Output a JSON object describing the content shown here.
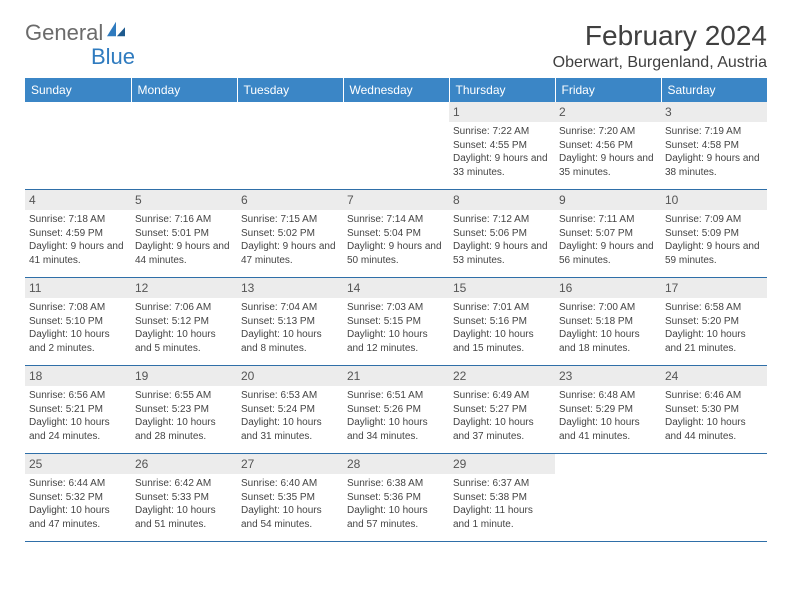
{
  "logo": {
    "g": "General",
    "b": "Blue"
  },
  "title": "February 2024",
  "location": "Oberwart, Burgenland, Austria",
  "colors": {
    "header_bg": "#3b86c6",
    "header_text": "#ffffff",
    "rule": "#2f6fa8",
    "daynum_bg": "#ececec",
    "body_text": "#444444",
    "title_text": "#404040",
    "logo_gray": "#6b6b6b",
    "logo_blue": "#2f7bbf"
  },
  "typography": {
    "title_fontsize": 28,
    "location_fontsize": 16,
    "dayheader_fontsize": 12,
    "daynum_fontsize": 12,
    "cell_fontsize": 10
  },
  "day_headers": [
    "Sunday",
    "Monday",
    "Tuesday",
    "Wednesday",
    "Thursday",
    "Friday",
    "Saturday"
  ],
  "weeks": [
    [
      {
        "n": "",
        "sr": "",
        "ss": "",
        "dl": ""
      },
      {
        "n": "",
        "sr": "",
        "ss": "",
        "dl": ""
      },
      {
        "n": "",
        "sr": "",
        "ss": "",
        "dl": ""
      },
      {
        "n": "",
        "sr": "",
        "ss": "",
        "dl": ""
      },
      {
        "n": "1",
        "sr": "Sunrise: 7:22 AM",
        "ss": "Sunset: 4:55 PM",
        "dl": "Daylight: 9 hours and 33 minutes."
      },
      {
        "n": "2",
        "sr": "Sunrise: 7:20 AM",
        "ss": "Sunset: 4:56 PM",
        "dl": "Daylight: 9 hours and 35 minutes."
      },
      {
        "n": "3",
        "sr": "Sunrise: 7:19 AM",
        "ss": "Sunset: 4:58 PM",
        "dl": "Daylight: 9 hours and 38 minutes."
      }
    ],
    [
      {
        "n": "4",
        "sr": "Sunrise: 7:18 AM",
        "ss": "Sunset: 4:59 PM",
        "dl": "Daylight: 9 hours and 41 minutes."
      },
      {
        "n": "5",
        "sr": "Sunrise: 7:16 AM",
        "ss": "Sunset: 5:01 PM",
        "dl": "Daylight: 9 hours and 44 minutes."
      },
      {
        "n": "6",
        "sr": "Sunrise: 7:15 AM",
        "ss": "Sunset: 5:02 PM",
        "dl": "Daylight: 9 hours and 47 minutes."
      },
      {
        "n": "7",
        "sr": "Sunrise: 7:14 AM",
        "ss": "Sunset: 5:04 PM",
        "dl": "Daylight: 9 hours and 50 minutes."
      },
      {
        "n": "8",
        "sr": "Sunrise: 7:12 AM",
        "ss": "Sunset: 5:06 PM",
        "dl": "Daylight: 9 hours and 53 minutes."
      },
      {
        "n": "9",
        "sr": "Sunrise: 7:11 AM",
        "ss": "Sunset: 5:07 PM",
        "dl": "Daylight: 9 hours and 56 minutes."
      },
      {
        "n": "10",
        "sr": "Sunrise: 7:09 AM",
        "ss": "Sunset: 5:09 PM",
        "dl": "Daylight: 9 hours and 59 minutes."
      }
    ],
    [
      {
        "n": "11",
        "sr": "Sunrise: 7:08 AM",
        "ss": "Sunset: 5:10 PM",
        "dl": "Daylight: 10 hours and 2 minutes."
      },
      {
        "n": "12",
        "sr": "Sunrise: 7:06 AM",
        "ss": "Sunset: 5:12 PM",
        "dl": "Daylight: 10 hours and 5 minutes."
      },
      {
        "n": "13",
        "sr": "Sunrise: 7:04 AM",
        "ss": "Sunset: 5:13 PM",
        "dl": "Daylight: 10 hours and 8 minutes."
      },
      {
        "n": "14",
        "sr": "Sunrise: 7:03 AM",
        "ss": "Sunset: 5:15 PM",
        "dl": "Daylight: 10 hours and 12 minutes."
      },
      {
        "n": "15",
        "sr": "Sunrise: 7:01 AM",
        "ss": "Sunset: 5:16 PM",
        "dl": "Daylight: 10 hours and 15 minutes."
      },
      {
        "n": "16",
        "sr": "Sunrise: 7:00 AM",
        "ss": "Sunset: 5:18 PM",
        "dl": "Daylight: 10 hours and 18 minutes."
      },
      {
        "n": "17",
        "sr": "Sunrise: 6:58 AM",
        "ss": "Sunset: 5:20 PM",
        "dl": "Daylight: 10 hours and 21 minutes."
      }
    ],
    [
      {
        "n": "18",
        "sr": "Sunrise: 6:56 AM",
        "ss": "Sunset: 5:21 PM",
        "dl": "Daylight: 10 hours and 24 minutes."
      },
      {
        "n": "19",
        "sr": "Sunrise: 6:55 AM",
        "ss": "Sunset: 5:23 PM",
        "dl": "Daylight: 10 hours and 28 minutes."
      },
      {
        "n": "20",
        "sr": "Sunrise: 6:53 AM",
        "ss": "Sunset: 5:24 PM",
        "dl": "Daylight: 10 hours and 31 minutes."
      },
      {
        "n": "21",
        "sr": "Sunrise: 6:51 AM",
        "ss": "Sunset: 5:26 PM",
        "dl": "Daylight: 10 hours and 34 minutes."
      },
      {
        "n": "22",
        "sr": "Sunrise: 6:49 AM",
        "ss": "Sunset: 5:27 PM",
        "dl": "Daylight: 10 hours and 37 minutes."
      },
      {
        "n": "23",
        "sr": "Sunrise: 6:48 AM",
        "ss": "Sunset: 5:29 PM",
        "dl": "Daylight: 10 hours and 41 minutes."
      },
      {
        "n": "24",
        "sr": "Sunrise: 6:46 AM",
        "ss": "Sunset: 5:30 PM",
        "dl": "Daylight: 10 hours and 44 minutes."
      }
    ],
    [
      {
        "n": "25",
        "sr": "Sunrise: 6:44 AM",
        "ss": "Sunset: 5:32 PM",
        "dl": "Daylight: 10 hours and 47 minutes."
      },
      {
        "n": "26",
        "sr": "Sunrise: 6:42 AM",
        "ss": "Sunset: 5:33 PM",
        "dl": "Daylight: 10 hours and 51 minutes."
      },
      {
        "n": "27",
        "sr": "Sunrise: 6:40 AM",
        "ss": "Sunset: 5:35 PM",
        "dl": "Daylight: 10 hours and 54 minutes."
      },
      {
        "n": "28",
        "sr": "Sunrise: 6:38 AM",
        "ss": "Sunset: 5:36 PM",
        "dl": "Daylight: 10 hours and 57 minutes."
      },
      {
        "n": "29",
        "sr": "Sunrise: 6:37 AM",
        "ss": "Sunset: 5:38 PM",
        "dl": "Daylight: 11 hours and 1 minute."
      },
      {
        "n": "",
        "sr": "",
        "ss": "",
        "dl": ""
      },
      {
        "n": "",
        "sr": "",
        "ss": "",
        "dl": ""
      }
    ]
  ]
}
